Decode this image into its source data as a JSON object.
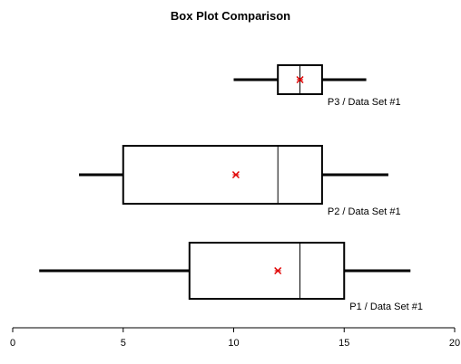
{
  "chart_data": {
    "type": "boxplot",
    "title": "Box Plot Comparison",
    "orientation": "horizontal",
    "xlim": [
      0,
      20
    ],
    "xticks": [
      "0",
      "5",
      "10",
      "15",
      "20"
    ],
    "xtick_values": [
      0,
      5,
      10,
      15,
      20
    ],
    "grid": false,
    "series": [
      {
        "label": "P3 / Data Set #1",
        "min": 10,
        "q1": 12,
        "median": 13,
        "q3": 14,
        "max": 16,
        "mean": 13
      },
      {
        "label": "P2 / Data Set #1",
        "min": 3,
        "q1": 5,
        "median": 12,
        "q3": 14,
        "max": 17,
        "mean": 10.1
      },
      {
        "label": "P1 / Data Set #1",
        "min": 1.2,
        "q1": 8,
        "median": 13,
        "q3": 15,
        "max": 18,
        "mean": 12
      }
    ],
    "mean_marker_color": "#e00000",
    "line_color": "#000000"
  }
}
